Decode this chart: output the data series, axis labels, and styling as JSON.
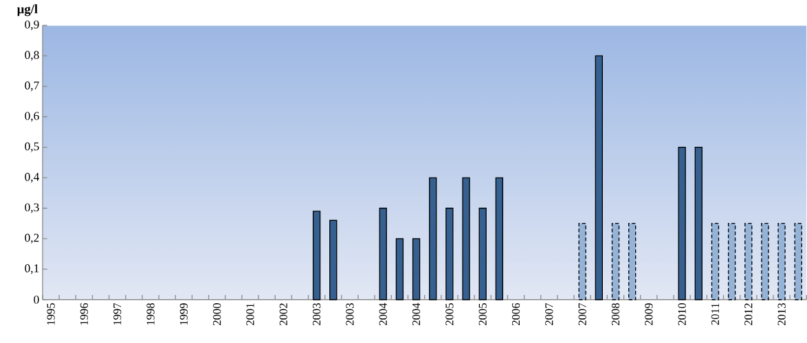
{
  "chart_data": {
    "type": "bar",
    "ylabel": "µg/l",
    "categories": [
      "1995",
      null,
      "1996",
      null,
      "1997",
      null,
      "1998",
      null,
      "1999",
      null,
      "2000",
      null,
      "2001",
      null,
      "2002",
      null,
      "2003",
      null,
      "2003",
      null,
      "2004",
      null,
      "2004",
      null,
      "2005",
      null,
      "2005",
      null,
      "2006",
      null,
      "2007",
      null,
      "2007",
      null,
      "2008",
      null,
      "2009",
      null,
      "2010",
      null,
      "2011",
      null,
      "2012",
      null,
      "2013",
      null
    ],
    "series": [
      {
        "color": "#35608f",
        "line_style": "solid",
        "values": [
          null,
          null,
          null,
          null,
          null,
          null,
          null,
          null,
          null,
          null,
          null,
          null,
          null,
          null,
          null,
          null,
          0.29,
          0.26,
          null,
          null,
          0.3,
          0.2,
          0.2,
          0.4,
          0.3,
          0.4,
          0.3,
          0.4,
          null,
          null,
          null,
          null,
          null,
          0.8,
          null,
          null,
          null,
          null,
          0.5,
          0.5,
          null,
          null,
          null,
          null,
          null,
          null
        ]
      },
      {
        "color": "#95b3d7",
        "line_style": "dashed",
        "values": [
          null,
          null,
          null,
          null,
          null,
          null,
          null,
          null,
          null,
          null,
          null,
          null,
          null,
          null,
          null,
          null,
          null,
          null,
          null,
          null,
          null,
          null,
          null,
          null,
          null,
          null,
          null,
          null,
          null,
          null,
          null,
          null,
          0.25,
          null,
          0.25,
          0.25,
          null,
          null,
          null,
          null,
          0.25,
          0.25,
          0.25,
          0.25,
          0.25,
          0.25
        ]
      }
    ],
    "ylim": [
      0,
      0.9
    ],
    "yticks": [
      0,
      {
        "value": 0.1,
        "label": "0,1"
      },
      {
        "value": 0.2,
        "label": "0,2"
      },
      {
        "value": 0.3,
        "label": "0,3"
      },
      {
        "value": 0.4,
        "label": "0,4"
      },
      {
        "value": 0.5,
        "label": "0,5"
      },
      {
        "value": 0.6,
        "label": "0,6"
      },
      {
        "value": 0.7,
        "label": "0,7"
      },
      {
        "value": 0.8,
        "label": "0,8"
      },
      {
        "value": 0.9,
        "label": "0,9"
      }
    ],
    "grid": false
  }
}
